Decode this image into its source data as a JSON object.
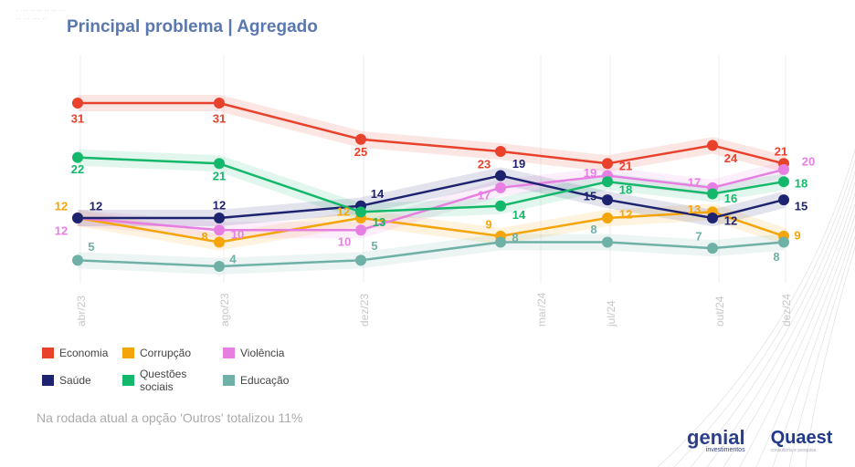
{
  "header": {
    "title": "Principal problema | Agregado"
  },
  "footnote": "Na rodada atual a opção 'Outros' totalizou 11%",
  "logos": {
    "genial": "genial",
    "genial_sub": "investimentos",
    "quaest": "Quaest",
    "quaest_sub": "consultoria e pesquisa"
  },
  "chart_data": {
    "type": "line",
    "title": "Principal problema | Agregado",
    "xlabel": "",
    "ylabel": "",
    "categories": [
      "abr/23",
      "ago/23",
      "dez/23",
      "mar/24",
      "jul/24",
      "out/24",
      "dez/24"
    ],
    "ylim": [
      0,
      35
    ],
    "grid": "vertical",
    "legend_position": "bottom-left",
    "series": [
      {
        "name": "Economia",
        "color": "#e8412c",
        "values": [
          31,
          31,
          25,
          23,
          21,
          24,
          21
        ]
      },
      {
        "name": "Corrupção",
        "color": "#f5a50a",
        "values": [
          12,
          8,
          12,
          9,
          12,
          13,
          9
        ]
      },
      {
        "name": "Violência",
        "color": "#e77fe3",
        "values": [
          12,
          10,
          10,
          17,
          19,
          17,
          20
        ]
      },
      {
        "name": "Saúde",
        "color": "#1e2370",
        "values": [
          12,
          12,
          14,
          19,
          15,
          12,
          15
        ]
      },
      {
        "name": "Questões sociais",
        "color": "#14b86a",
        "values": [
          22,
          21,
          13,
          14,
          18,
          16,
          18
        ]
      },
      {
        "name": "Educação",
        "color": "#6fb1a6",
        "values": [
          5,
          4,
          5,
          8,
          8,
          7,
          8
        ]
      }
    ]
  }
}
